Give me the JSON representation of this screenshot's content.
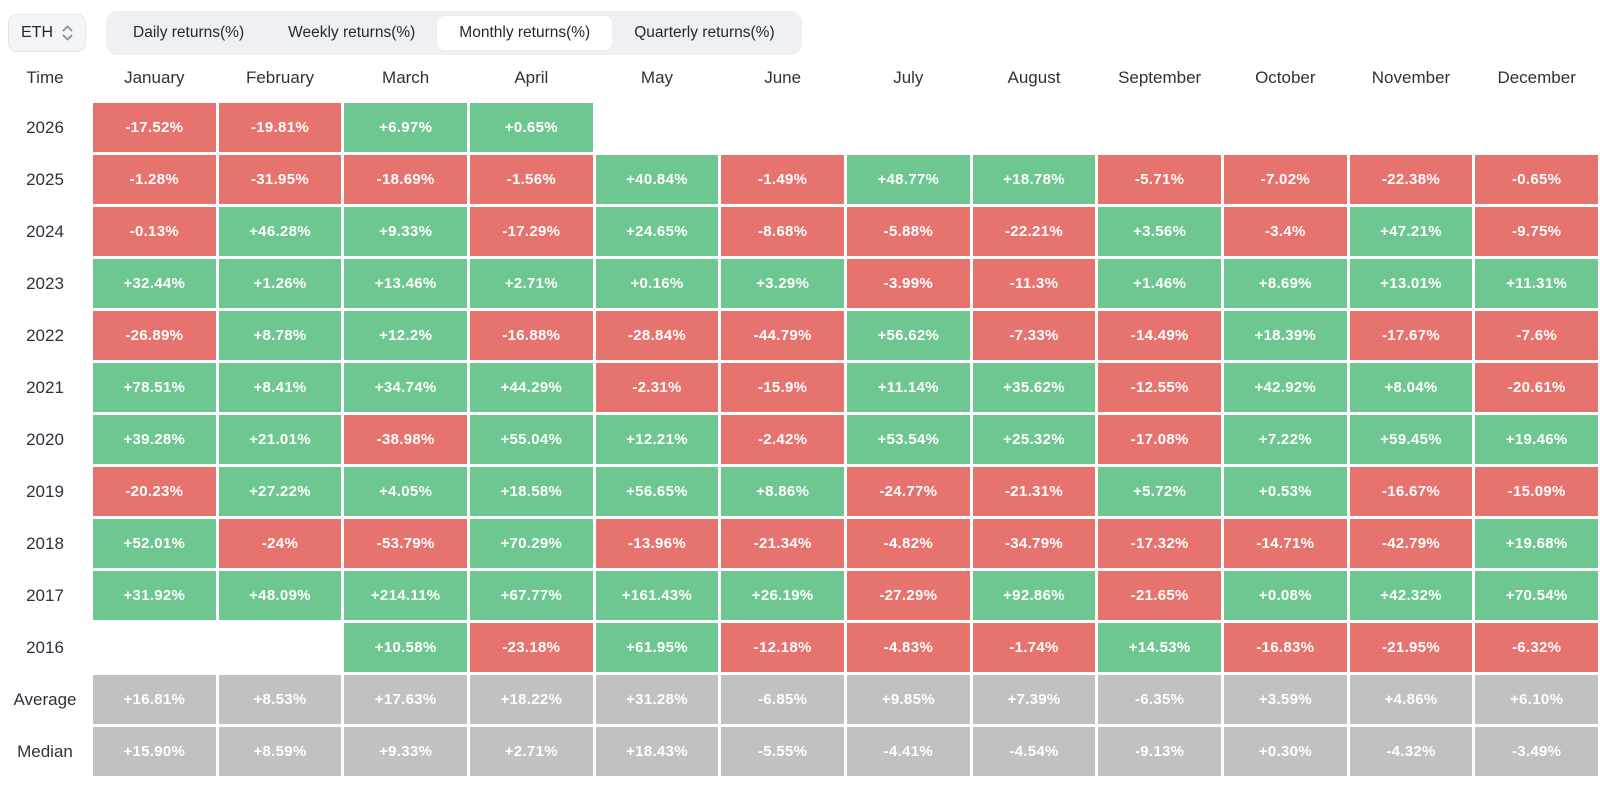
{
  "controls": {
    "symbol": "ETH",
    "tabs": [
      {
        "label": "Daily returns(%)",
        "active": false
      },
      {
        "label": "Weekly returns(%)",
        "active": false
      },
      {
        "label": "Monthly returns(%)",
        "active": true
      },
      {
        "label": "Quarterly returns(%)",
        "active": false
      }
    ]
  },
  "colors": {
    "positive": "#6EC690",
    "negative": "#E7736E",
    "neutral": "#C1C1C3"
  },
  "chart_data": {
    "type": "heatmap",
    "title": "ETH Monthly returns(%)",
    "columns": [
      "Time",
      "January",
      "February",
      "March",
      "April",
      "May",
      "June",
      "July",
      "August",
      "September",
      "October",
      "November",
      "December"
    ],
    "rows": [
      {
        "label": "2026",
        "stat": false,
        "values": [
          "-17.52%",
          "-19.81%",
          "+6.97%",
          "+0.65%",
          "",
          "",
          "",
          "",
          "",
          "",
          "",
          ""
        ]
      },
      {
        "label": "2025",
        "stat": false,
        "values": [
          "-1.28%",
          "-31.95%",
          "-18.69%",
          "-1.56%",
          "+40.84%",
          "-1.49%",
          "+48.77%",
          "+18.78%",
          "-5.71%",
          "-7.02%",
          "-22.38%",
          "-0.65%"
        ]
      },
      {
        "label": "2024",
        "stat": false,
        "values": [
          "-0.13%",
          "+46.28%",
          "+9.33%",
          "-17.29%",
          "+24.65%",
          "-8.68%",
          "-5.88%",
          "-22.21%",
          "+3.56%",
          "-3.4%",
          "+47.21%",
          "-9.75%"
        ]
      },
      {
        "label": "2023",
        "stat": false,
        "values": [
          "+32.44%",
          "+1.26%",
          "+13.46%",
          "+2.71%",
          "+0.16%",
          "+3.29%",
          "-3.99%",
          "-11.3%",
          "+1.46%",
          "+8.69%",
          "+13.01%",
          "+11.31%"
        ]
      },
      {
        "label": "2022",
        "stat": false,
        "values": [
          "-26.89%",
          "+8.78%",
          "+12.2%",
          "-16.88%",
          "-28.84%",
          "-44.79%",
          "+56.62%",
          "-7.33%",
          "-14.49%",
          "+18.39%",
          "-17.67%",
          "-7.6%"
        ]
      },
      {
        "label": "2021",
        "stat": false,
        "values": [
          "+78.51%",
          "+8.41%",
          "+34.74%",
          "+44.29%",
          "-2.31%",
          "-15.9%",
          "+11.14%",
          "+35.62%",
          "-12.55%",
          "+42.92%",
          "+8.04%",
          "-20.61%"
        ]
      },
      {
        "label": "2020",
        "stat": false,
        "values": [
          "+39.28%",
          "+21.01%",
          "-38.98%",
          "+55.04%",
          "+12.21%",
          "-2.42%",
          "+53.54%",
          "+25.32%",
          "-17.08%",
          "+7.22%",
          "+59.45%",
          "+19.46%"
        ]
      },
      {
        "label": "2019",
        "stat": false,
        "values": [
          "-20.23%",
          "+27.22%",
          "+4.05%",
          "+18.58%",
          "+56.65%",
          "+8.86%",
          "-24.77%",
          "-21.31%",
          "+5.72%",
          "+0.53%",
          "-16.67%",
          "-15.09%"
        ]
      },
      {
        "label": "2018",
        "stat": false,
        "values": [
          "+52.01%",
          "-24%",
          "-53.79%",
          "+70.29%",
          "-13.96%",
          "-21.34%",
          "-4.82%",
          "-34.79%",
          "-17.32%",
          "-14.71%",
          "-42.79%",
          "+19.68%"
        ]
      },
      {
        "label": "2017",
        "stat": false,
        "values": [
          "+31.92%",
          "+48.09%",
          "+214.11%",
          "+67.77%",
          "+161.43%",
          "+26.19%",
          "-27.29%",
          "+92.86%",
          "-21.65%",
          "+0.08%",
          "+42.32%",
          "+70.54%"
        ]
      },
      {
        "label": "2016",
        "stat": false,
        "values": [
          "",
          "",
          "+10.58%",
          "-23.18%",
          "+61.95%",
          "-12.18%",
          "-4.83%",
          "-1.74%",
          "+14.53%",
          "-16.83%",
          "-21.95%",
          "-6.32%"
        ]
      },
      {
        "label": "Average",
        "stat": true,
        "values": [
          "+16.81%",
          "+8.53%",
          "+17.63%",
          "+18.22%",
          "+31.28%",
          "-6.85%",
          "+9.85%",
          "+7.39%",
          "-6.35%",
          "+3.59%",
          "+4.86%",
          "+6.10%"
        ]
      },
      {
        "label": "Median",
        "stat": true,
        "values": [
          "+15.90%",
          "+8.59%",
          "+9.33%",
          "+2.71%",
          "+18.43%",
          "-5.55%",
          "-4.41%",
          "-4.54%",
          "-9.13%",
          "+0.30%",
          "-4.32%",
          "-3.49%"
        ]
      }
    ]
  }
}
